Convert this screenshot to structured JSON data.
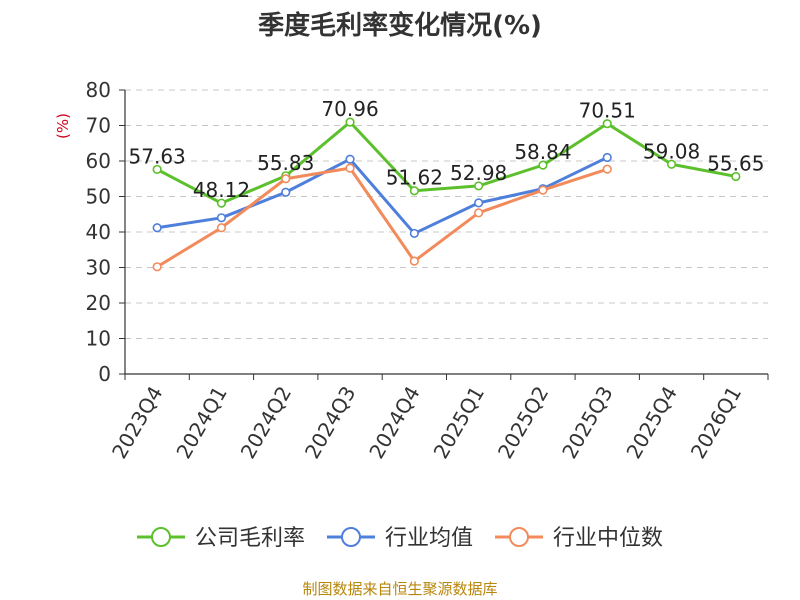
{
  "chart_data": {
    "type": "line",
    "title": "季度毛利率变化情况(%)",
    "ylabel": "(%)",
    "ylim": [
      0,
      80
    ],
    "yticks": [
      0,
      10,
      20,
      30,
      40,
      50,
      60,
      70,
      80
    ],
    "grid": true,
    "legend_position": "bottom",
    "categories": [
      "2023Q4",
      "2024Q1",
      "2024Q2",
      "2024Q3",
      "2024Q4",
      "2025Q1",
      "2025Q2",
      "2025Q3",
      "2025Q4",
      "2026Q1"
    ],
    "series": [
      {
        "name": "公司毛利率",
        "color": "#5cc02c",
        "values": [
          57.63,
          48.12,
          55.83,
          70.96,
          51.62,
          52.98,
          58.84,
          70.51,
          59.08,
          55.65
        ],
        "labels": [
          "57.63",
          "48.12",
          "55.83",
          "70.96",
          "51.62",
          "52.98",
          "58.84",
          "70.51",
          "59.08",
          "55.65"
        ]
      },
      {
        "name": "行业均值",
        "color": "#4e7fdb",
        "values": [
          41.2,
          44.0,
          51.2,
          60.5,
          39.6,
          48.2,
          52.2,
          61.0,
          null,
          null
        ]
      },
      {
        "name": "行业中位数",
        "color": "#f28b5c",
        "values": [
          30.2,
          41.2,
          55.0,
          58.0,
          31.8,
          45.4,
          51.8,
          57.7,
          null,
          null
        ]
      }
    ]
  },
  "source_text": "制图数据来自恒生聚源数据库",
  "colors": {
    "axis": "#333333",
    "grid": "#c8c8c8",
    "unit": "#d0021b",
    "source": "#b8860b"
  }
}
